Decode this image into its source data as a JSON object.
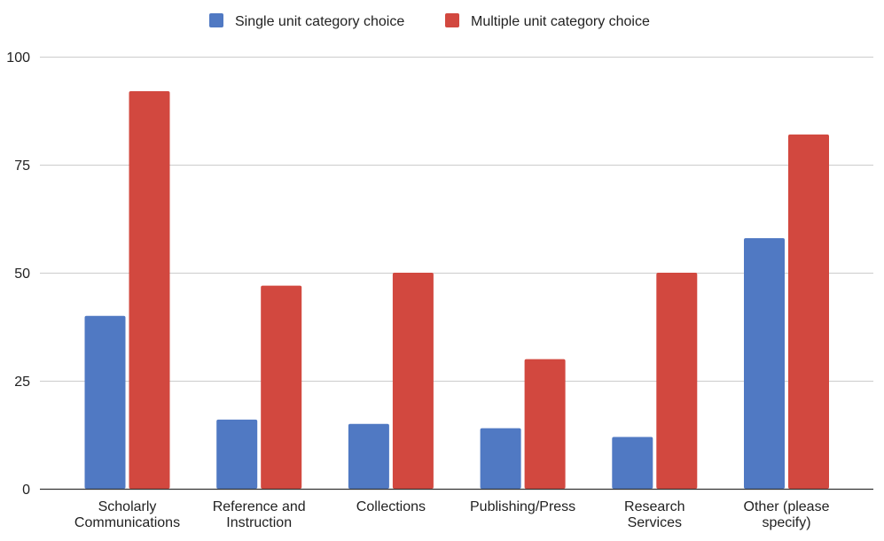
{
  "chart_data": {
    "type": "bar",
    "title": "",
    "xlabel": "",
    "ylabel": "",
    "ylim": [
      0,
      100
    ],
    "yticks": [
      0,
      25,
      50,
      75,
      100
    ],
    "grid": true,
    "legend_position": "top",
    "categories": [
      [
        "Scholarly",
        "Communications"
      ],
      [
        "Reference and",
        "Instruction"
      ],
      [
        "Collections"
      ],
      [
        "Publishing/Press"
      ],
      [
        "Research",
        "Services"
      ],
      [
        "Other (please",
        "specify)"
      ]
    ],
    "series": [
      {
        "name": "Single unit category choice",
        "color": "#5079c3",
        "values": [
          40,
          16,
          15,
          14,
          12,
          58
        ]
      },
      {
        "name": "Multiple unit category choice",
        "color": "#d2483f",
        "values": [
          92,
          47,
          50,
          30,
          50,
          82
        ]
      }
    ]
  }
}
